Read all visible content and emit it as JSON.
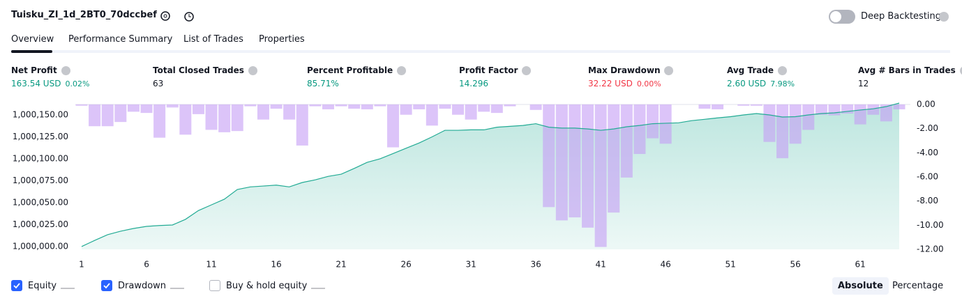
{
  "header": {
    "title": "Tuisku_ZI_1d_2BT0_70dccbef",
    "deep_backtesting": {
      "label": "Deep Backtesting",
      "enabled": false
    }
  },
  "tabs": [
    {
      "label": "Overview",
      "active": true
    },
    {
      "label": "Performance Summary",
      "active": false
    },
    {
      "label": "List of Trades",
      "active": false
    },
    {
      "label": "Properties",
      "active": false
    }
  ],
  "metrics": [
    {
      "label": "Net Profit",
      "value": "163.54 USD",
      "change": "0.02%",
      "color": "#089981"
    },
    {
      "label": "Total Closed Trades",
      "value": "63",
      "color": "#131722"
    },
    {
      "label": "Percent Profitable",
      "value": "85.71%",
      "color": "#089981"
    },
    {
      "label": "Profit Factor",
      "value": "14.296",
      "color": "#089981"
    },
    {
      "label": "Max Drawdown",
      "value": "32.22 USD",
      "change": "0.00%",
      "color": "#f23645"
    },
    {
      "label": "Avg Trade",
      "value": "2.60 USD",
      "change": "7.98%",
      "color": "#089981"
    },
    {
      "label": "Avg # Bars in Trades",
      "value": "12",
      "color": "#131722"
    }
  ],
  "chart_data": {
    "type": "line",
    "x": [
      1,
      2,
      3,
      4,
      5,
      6,
      7,
      8,
      9,
      10,
      11,
      12,
      13,
      14,
      15,
      16,
      17,
      18,
      19,
      20,
      21,
      22,
      23,
      24,
      25,
      26,
      27,
      28,
      29,
      30,
      31,
      32,
      33,
      34,
      35,
      36,
      37,
      38,
      39,
      40,
      41,
      42,
      43,
      44,
      45,
      46,
      47,
      48,
      49,
      50,
      51,
      52,
      53,
      54,
      55,
      56,
      57,
      58,
      59,
      60,
      61,
      62,
      63,
      64
    ],
    "xlim": [
      1,
      64
    ],
    "xticks": [
      1,
      6,
      11,
      16,
      21,
      26,
      31,
      36,
      41,
      46,
      51,
      56,
      61
    ],
    "ylim": [
      999996.8,
      1000161.9
    ],
    "yticks": [
      {
        "value": 1000000,
        "label": "1,000,000.00"
      },
      {
        "value": 1000025,
        "label": "1,000,025.00"
      },
      {
        "value": 1000050,
        "label": "1,000,050.00"
      },
      {
        "value": 1000075,
        "label": "1,000,075.00"
      },
      {
        "value": 1000100,
        "label": "1,000,100.00"
      },
      {
        "value": 1000125,
        "label": "1,000,125.00"
      },
      {
        "value": 1000150,
        "label": "1,000,150.00"
      }
    ],
    "y2lim": [
      0,
      -12
    ],
    "y2ticks": [
      {
        "value": 0,
        "label": "0.00"
      },
      {
        "value": -2,
        "label": "-2.00"
      },
      {
        "value": -4,
        "label": "-4.00"
      },
      {
        "value": -6,
        "label": "-6.00"
      },
      {
        "value": -8,
        "label": "-8.00"
      },
      {
        "value": -10,
        "label": "-10.00"
      },
      {
        "value": -12,
        "label": "-12.00"
      }
    ],
    "series": [
      {
        "name": "Equity",
        "type": "line",
        "checked": true,
        "color": "#22ab94",
        "values": [
          1000000,
          1000007,
          1000013.5,
          1000017.5,
          1000020.6,
          1000023,
          1000024,
          1000024.6,
          1000031,
          1000041,
          1000047.5,
          1000054,
          1000065,
          1000068,
          1000069,
          1000070,
          1000068,
          1000073,
          1000076,
          1000080,
          1000082.5,
          1000089,
          1000096,
          1000100,
          1000106,
          1000112,
          1000118,
          1000125,
          1000132.5,
          1000132.5,
          1000133,
          1000133,
          1000136,
          1000137,
          1000138,
          1000140,
          1000136,
          1000135,
          1000135,
          1000134,
          1000132.5,
          1000134,
          1000136.5,
          1000138,
          1000140,
          1000140.5,
          1000141,
          1000143.5,
          1000145,
          1000146.6,
          1000148,
          1000150,
          1000151.6,
          1000150,
          1000147.6,
          1000148,
          1000150,
          1000151.6,
          1000152.4,
          1000154,
          1000155.6,
          1000157,
          1000159.5,
          1000163.54
        ]
      },
      {
        "name": "Drawdown",
        "type": "bar",
        "axis": "y2",
        "checked": true,
        "color": "#c59cf5",
        "values": [
          -0.1,
          -1.8,
          -1.8,
          -1.45,
          -0.6,
          -0.7,
          -2.75,
          -0.25,
          -2.5,
          -0.8,
          -2.1,
          -2.3,
          -2.2,
          -0.15,
          -1.25,
          -0.35,
          -1.25,
          -3.4,
          -0.15,
          -0.4,
          -0.15,
          -0.35,
          -0.4,
          -0.15,
          -3.55,
          -0.85,
          -0.4,
          -1.75,
          -0.35,
          -0.85,
          -1.25,
          -0.6,
          -0.7,
          -0.15,
          0,
          -0.45,
          -8.5,
          -9.6,
          -9.35,
          -10.2,
          -11.8,
          -8.95,
          -6.05,
          -4.1,
          -2.8,
          -3.25,
          0,
          0,
          -0.35,
          -0.4,
          0,
          -0.1,
          -0.1,
          -3.1,
          -4.45,
          -3.25,
          -2.1,
          -0.85,
          -0.9,
          -0.75,
          -1.65,
          -0.85,
          -1.4,
          -0.4
        ]
      }
    ]
  },
  "buy_hold": {
    "name": "Buy & hold equity",
    "checked": false
  },
  "view_buttons": [
    {
      "label": "Absolute",
      "active": true
    },
    {
      "label": "Percentage",
      "active": false
    }
  ]
}
